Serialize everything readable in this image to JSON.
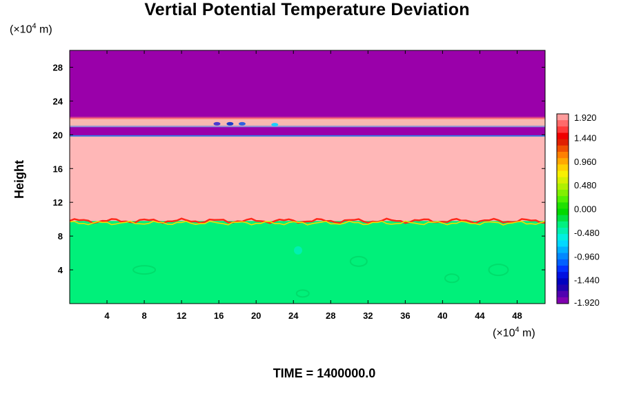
{
  "chart_data": {
    "type": "heatmap",
    "title": "Vertial Potential Temperature Deviation",
    "ylabel": "Height",
    "y_unit": "(×10",
    "y_unit_exp": "4",
    "y_unit_suffix": " m)",
    "x_unit": "(×10",
    "x_unit_exp": "4",
    "x_unit_suffix": " m)",
    "footer": "TIME = 1400000.0",
    "xlim": [
      0,
      51
    ],
    "ylim": [
      0,
      30
    ],
    "x_ticks": [
      4,
      8,
      12,
      16,
      20,
      24,
      28,
      32,
      36,
      40,
      44,
      48
    ],
    "y_ticks": [
      4,
      8,
      12,
      16,
      20,
      24,
      28
    ],
    "colorbar": {
      "min": -1.92,
      "max": 1.92,
      "tick_labels": [
        "1.920",
        "1.440",
        "0.960",
        "0.480",
        "0.000",
        "-0.480",
        "-0.960",
        "-1.440",
        "-1.920"
      ],
      "tick_values": [
        1.92,
        1.44,
        0.96,
        0.48,
        0.0,
        -0.48,
        -0.96,
        -1.44,
        -1.92
      ]
    },
    "regions": [
      {
        "name": "lower",
        "y_range": [
          0,
          9.8
        ],
        "value": 0.08,
        "color": "#00f07a"
      },
      {
        "name": "middle",
        "y_range": [
          9.8,
          19.8
        ],
        "value": 1.92,
        "color": "#ffb7b7"
      },
      {
        "name": "upper-band",
        "y_range": [
          21.1,
          22.0
        ],
        "value": 1.92,
        "color": "#f8b9b0"
      },
      {
        "name": "top",
        "y_range": [
          22.0,
          30
        ],
        "value": -1.92,
        "color": "#9a00aa"
      }
    ]
  }
}
